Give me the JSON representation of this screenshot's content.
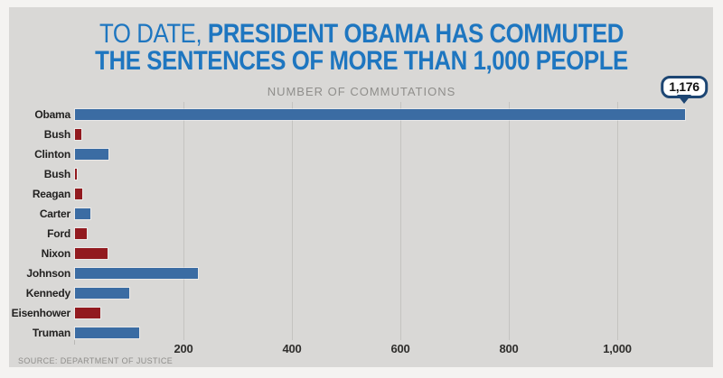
{
  "header": {
    "title_light": "TO DATE, ",
    "title_bold_line1": "PRESIDENT OBAMA HAS COMMUTED",
    "title_line2": "THE SENTENCES OF MORE THAN 1,000 PEOPLE",
    "subtitle": "NUMBER OF COMMUTATIONS"
  },
  "source": "SOURCE: DEPARTMENT OF JUSTICE",
  "callout": {
    "label": "1,176",
    "points_to": "Obama"
  },
  "colors": {
    "title_blue": "#1e76c0",
    "democrat_bar": "#3b6ca3",
    "republican_bar": "#921a1f",
    "panel_bg": "#d9d8d6",
    "page_bg": "#f4f3f1",
    "gridline": "#c4c3c0",
    "callout_border": "#1d4673"
  },
  "chart_data": {
    "type": "bar",
    "orientation": "horizontal",
    "title": "NUMBER OF COMMUTATIONS",
    "xlabel": "",
    "ylabel": "",
    "xlim": [
      0,
      1200
    ],
    "grid": true,
    "legend": false,
    "categories": [
      "Obama",
      "Bush",
      "Clinton",
      "Bush",
      "Reagan",
      "Carter",
      "Ford",
      "Nixon",
      "Johnson",
      "Kennedy",
      "Eisenhower",
      "Truman"
    ],
    "values": [
      1176,
      11,
      61,
      3,
      13,
      29,
      22,
      60,
      226,
      100,
      47,
      118
    ],
    "parties": [
      "democrat",
      "republican",
      "democrat",
      "republican",
      "republican",
      "democrat",
      "republican",
      "republican",
      "democrat",
      "democrat",
      "republican",
      "democrat"
    ],
    "x_ticks": [
      {
        "value": 200,
        "label": "200"
      },
      {
        "value": 400,
        "label": "400"
      },
      {
        "value": 600,
        "label": "600"
      },
      {
        "value": 800,
        "label": "800"
      },
      {
        "value": 1000,
        "label": "1,000"
      }
    ],
    "annotation": {
      "category": "Obama",
      "value": 1176,
      "label": "1,176"
    }
  }
}
